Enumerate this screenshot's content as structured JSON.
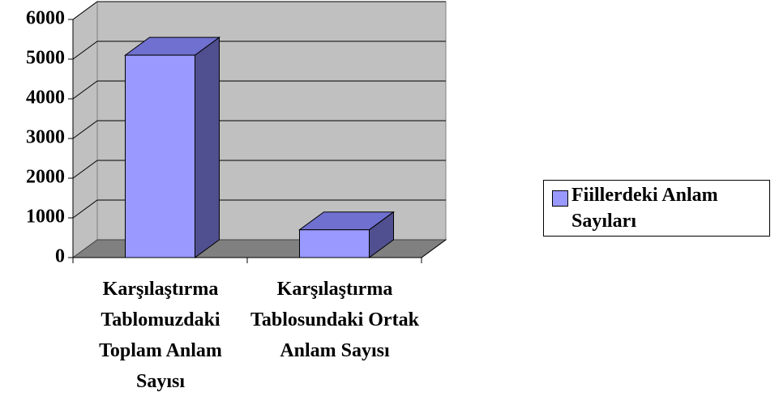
{
  "chart_data": {
    "type": "bar3d",
    "categories": [
      "Karşılaştırma Tablomuzdaki Toplam Anlam Sayısı",
      "Karşılaştırma Tablosundaki Ortak Anlam Sayısı"
    ],
    "series": [
      {
        "name": "Fiillerdeki Anlam Sayıları",
        "color": "#9999ff",
        "values": [
          5100,
          700
        ]
      }
    ],
    "ylim": [
      0,
      6000
    ],
    "yticks": [
      0,
      1000,
      2000,
      3000,
      4000,
      5000,
      6000
    ],
    "grid": true,
    "legend": "right"
  }
}
